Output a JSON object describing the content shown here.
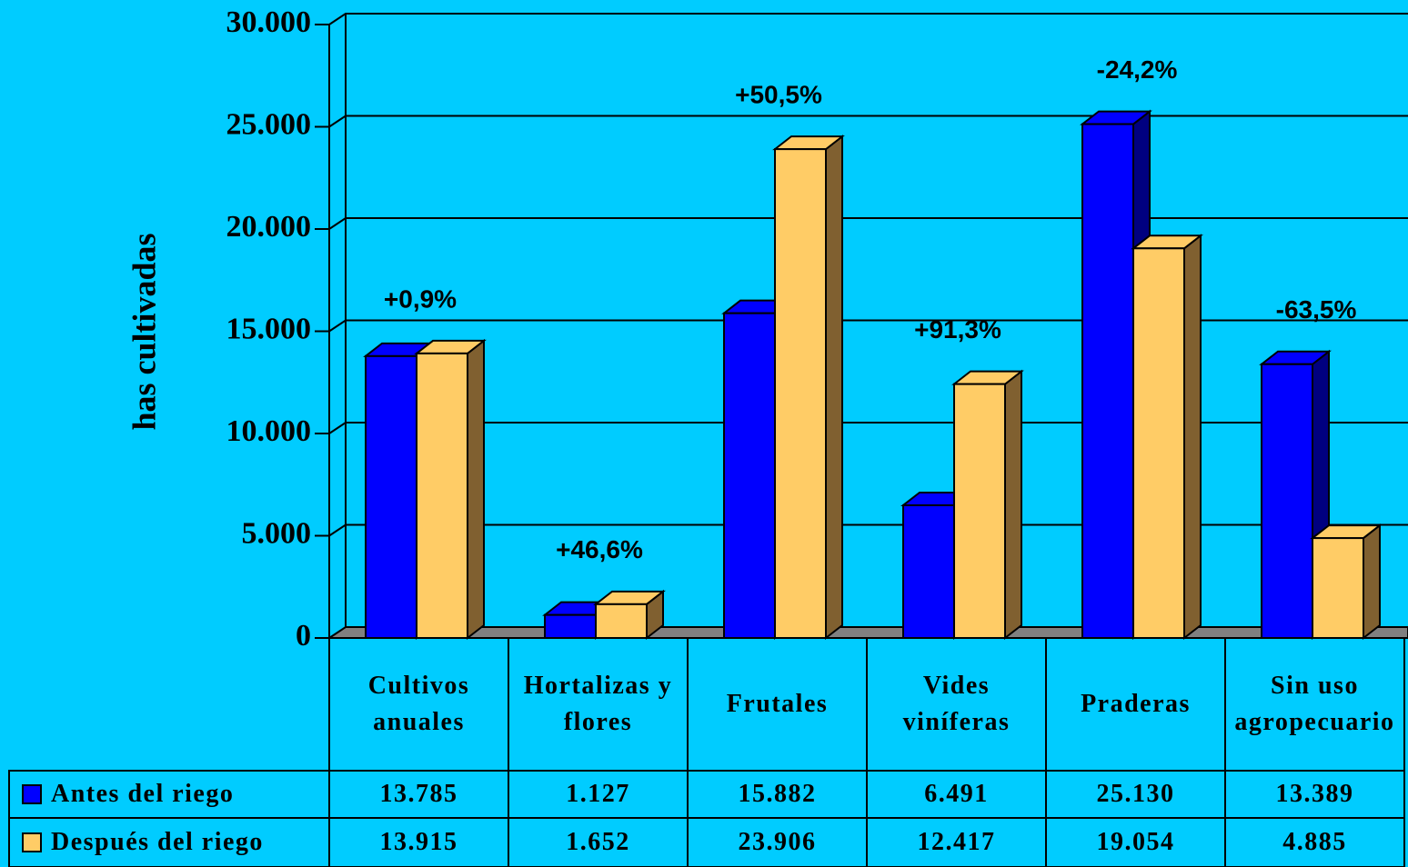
{
  "chart_data": {
    "type": "bar3d",
    "y_label": "has cultivadas",
    "categories": [
      "Cultivos anuales",
      "Hortalizas y flores",
      "Frutales",
      "Vides viníferas",
      "Praderas",
      "Sin uso agropecuario"
    ],
    "series": [
      {
        "name": "Antes del riego",
        "color": "#0000ff",
        "side_color": "#000080",
        "values": [
          13785,
          1127,
          15882,
          6491,
          25130,
          13389
        ],
        "value_labels": [
          "13.785",
          "1.127",
          "15.882",
          "6.491",
          "25.130",
          "13.389"
        ]
      },
      {
        "name": "Después del riego",
        "color": "#ffcc66",
        "side_color": "#806030",
        "values": [
          13915,
          1652,
          23906,
          12417,
          19054,
          4885
        ],
        "value_labels": [
          "13.915",
          "1.652",
          "23.906",
          "12.417",
          "19.054",
          "4.885"
        ]
      }
    ],
    "annotations": [
      "+0,9%",
      "+46,6%",
      "+50,5%",
      "+91,3%",
      "-24,2%",
      "-63,5%"
    ],
    "ylim": [
      0,
      30000
    ],
    "yticks": [
      0,
      {
        "value": 5000,
        "label": "5.000"
      },
      {
        "value": 10000,
        "label": "10.000"
      },
      {
        "value": 15000,
        "label": "15.000"
      },
      {
        "value": 20000,
        "label": "20.000"
      },
      {
        "value": 25000,
        "label": "25.000"
      },
      {
        "value": 30000,
        "label": "30.000"
      }
    ],
    "grid": true
  }
}
